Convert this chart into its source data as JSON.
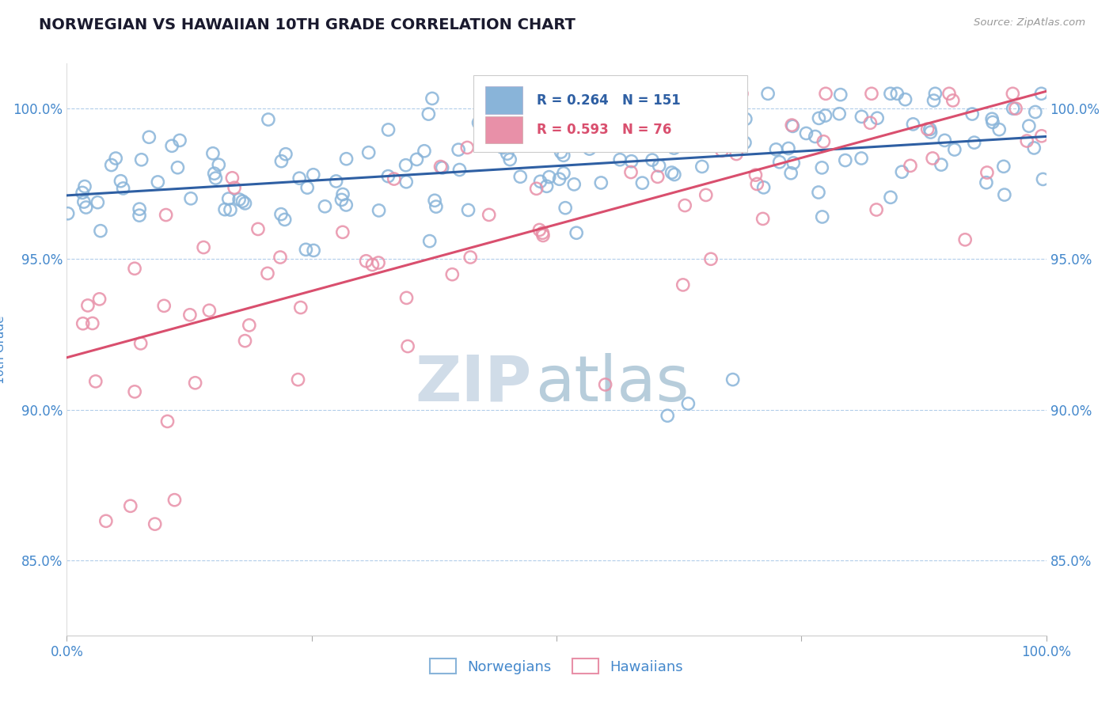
{
  "title": "NORWEGIAN VS HAWAIIAN 10TH GRADE CORRELATION CHART",
  "source_text": "Source: ZipAtlas.com",
  "ylabel": "10th Grade",
  "xlim": [
    0.0,
    1.0
  ],
  "ylim": [
    0.825,
    1.015
  ],
  "yticks": [
    0.85,
    0.9,
    0.95,
    1.0
  ],
  "ytick_labels": [
    "85.0%",
    "90.0%",
    "95.0%",
    "100.0%"
  ],
  "xticks": [
    0.0,
    0.25,
    0.5,
    0.75,
    1.0
  ],
  "xtick_labels": [
    "0.0%",
    "",
    "",
    "",
    "100.0%"
  ],
  "norwegian_R": 0.264,
  "norwegian_N": 151,
  "hawaiian_R": 0.593,
  "hawaiian_N": 76,
  "norwegian_face_color": "none",
  "norwegian_edge_color": "#89b4d9",
  "hawaiian_face_color": "none",
  "hawaiian_edge_color": "#e890a8",
  "norwegian_line_color": "#2e5fa3",
  "hawaiian_line_color": "#d94f6e",
  "legend_label_norwegian": "Norwegians",
  "legend_label_hawaiian": "Hawaiians",
  "background_color": "#ffffff",
  "grid_color": "#aac8e8",
  "title_color": "#1a1a2e",
  "tick_color": "#4488cc",
  "watermark_zip_color": "#d0dce8",
  "watermark_atlas_color": "#b0c8d8",
  "line_width": 2.2,
  "dot_size": 120,
  "dot_linewidth": 1.8
}
